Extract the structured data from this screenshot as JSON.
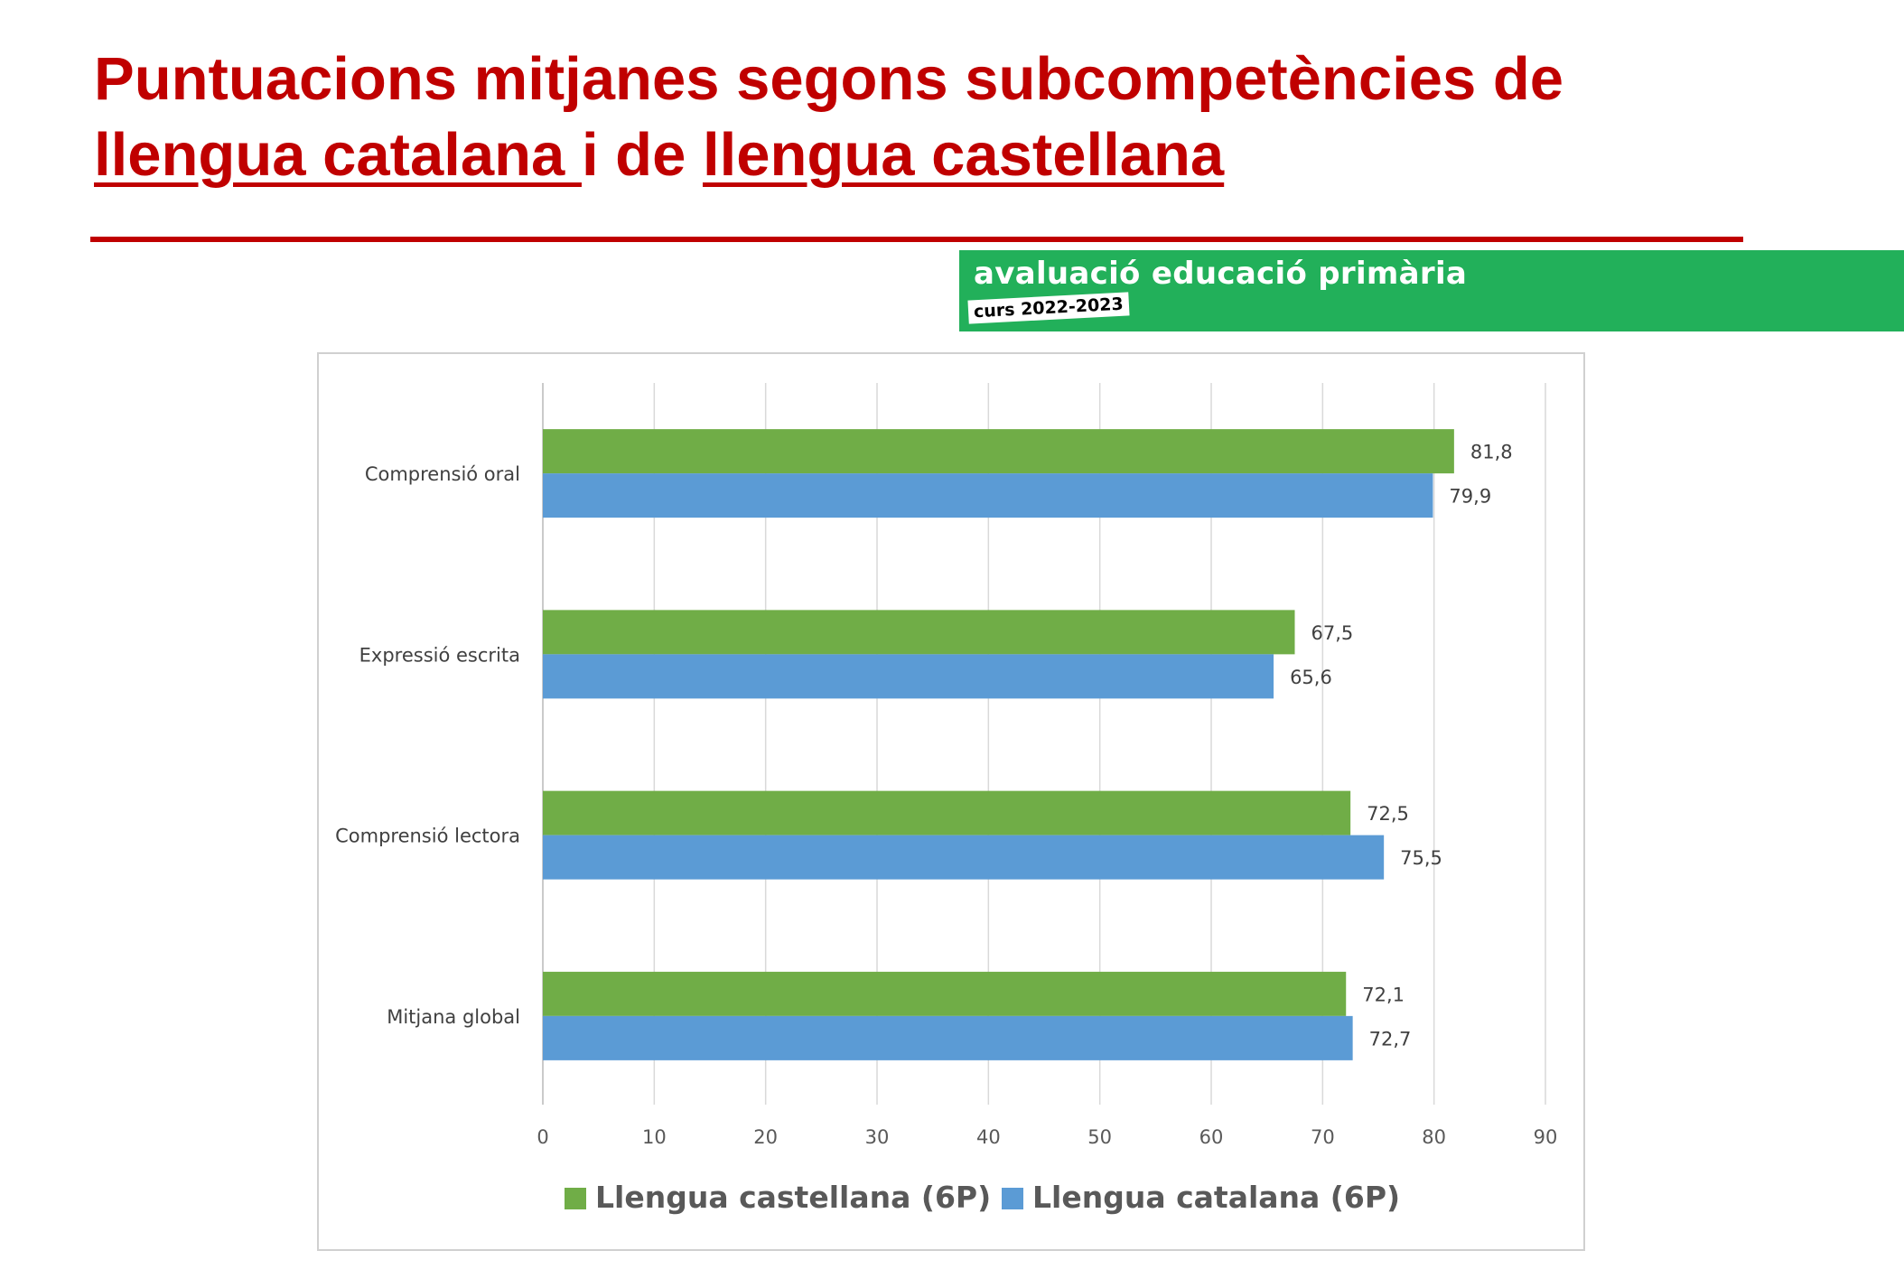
{
  "header": {
    "title_part1": "Puntuacions mitjanes segons subcompetències de",
    "title_link1": "llengua catalana ",
    "title_mid": "i de ",
    "title_link2": "llengua castellana"
  },
  "banner": {
    "title": "avaluació educació primària",
    "subtitle": "curs 2022-2023"
  },
  "colors": {
    "title": "#c00000",
    "banner": "#22b05a",
    "castellana": "#70ad47",
    "catalana": "#5b9bd5"
  },
  "chart_data": {
    "type": "bar",
    "orientation": "horizontal",
    "categories": [
      "Comprensió oral",
      "Expressió escrita",
      "Comprensió lectora",
      "Mitjana global"
    ],
    "series": [
      {
        "name": "Llengua castellana (6P)",
        "values": [
          81.8,
          67.5,
          72.5,
          72.1
        ],
        "labels": [
          "81,8",
          "67,5",
          "72,5",
          "72,1"
        ]
      },
      {
        "name": "Llengua catalana (6P)",
        "values": [
          79.9,
          65.6,
          75.5,
          72.7
        ],
        "labels": [
          "79,9",
          "65,6",
          "75,5",
          "72,7"
        ]
      }
    ],
    "xlim": [
      0,
      90
    ],
    "xticks": [
      "0",
      "10",
      "20",
      "30",
      "40",
      "50",
      "60",
      "70",
      "80",
      "90"
    ],
    "grid": true,
    "legend": "bottom"
  }
}
